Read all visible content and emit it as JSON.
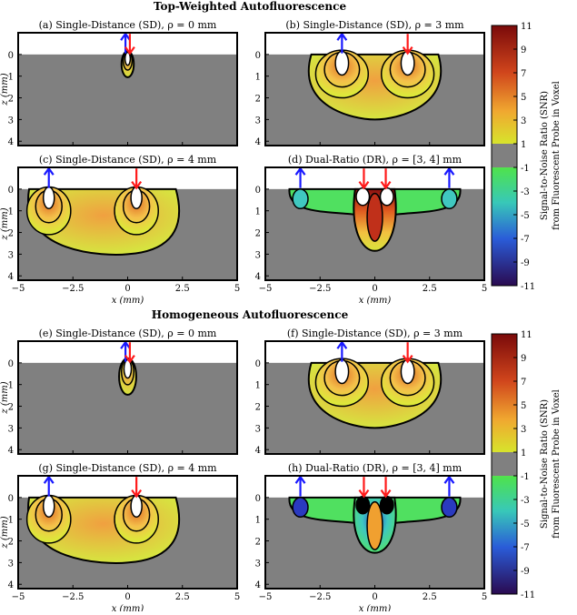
{
  "chart_data": {
    "type": "heatmap",
    "sections": [
      {
        "title": "Top-Weighted Autofluorescence",
        "colorbar_label_lines": [
          "Signal-to-Noise Ratio (SNR)",
          "from Fluorescent Probe in Voxel"
        ],
        "panels": [
          {
            "title": "(a) Single-Distance (SD), ρ = 0 mm",
            "kind": "SD0"
          },
          {
            "title": "(b) Single-Distance (SD), ρ = 3 mm",
            "kind": "SD3"
          },
          {
            "title": "(c) Single-Distance (SD), ρ = 4 mm",
            "kind": "SD4"
          },
          {
            "title": "(d) Dual-Ratio (DR), ρ = [3, 4] mm",
            "kind": "DR"
          }
        ]
      },
      {
        "title": "Homogeneous Autofluorescence",
        "colorbar_label_lines": [
          "Signal-to-Noise Ratio (SNR)",
          "from Fluorescent Probe in Voxel"
        ],
        "panels": [
          {
            "title": "(e) Single-Distance (SD), ρ = 0 mm",
            "kind": "SD0"
          },
          {
            "title": "(f) Single-Distance (SD), ρ = 3 mm",
            "kind": "SD3"
          },
          {
            "title": "(g) Single-Distance (SD), ρ = 4 mm",
            "kind": "SD4"
          },
          {
            "title": "(h) Dual-Ratio (DR), ρ = [3, 4] mm",
            "kind": "DR"
          }
        ]
      }
    ],
    "xlabel": "x (mm)",
    "ylabel": "z (mm)",
    "xlim": [
      -5,
      5
    ],
    "zlim": [
      -1,
      4.2
    ],
    "xticks": [
      -5,
      -2.5,
      0,
      2.5,
      5
    ],
    "xtick_labels": [
      "−5",
      "−2.5",
      "0",
      "2.5",
      "5"
    ],
    "zticks": [
      0,
      1,
      2,
      3,
      4
    ],
    "colorbar_range": [
      -11,
      11
    ],
    "colorbar_ticks": [
      11,
      9,
      7,
      5,
      3,
      1,
      -1,
      -3,
      -5,
      -7,
      -9,
      -11
    ],
    "colorbar_masked_band": [
      -1,
      1
    ],
    "colors": {
      "masked": "#808080",
      "contour": "#000000",
      "source_arrow": "#1a1aff",
      "detector_arrow": "#ff1a1a"
    }
  }
}
